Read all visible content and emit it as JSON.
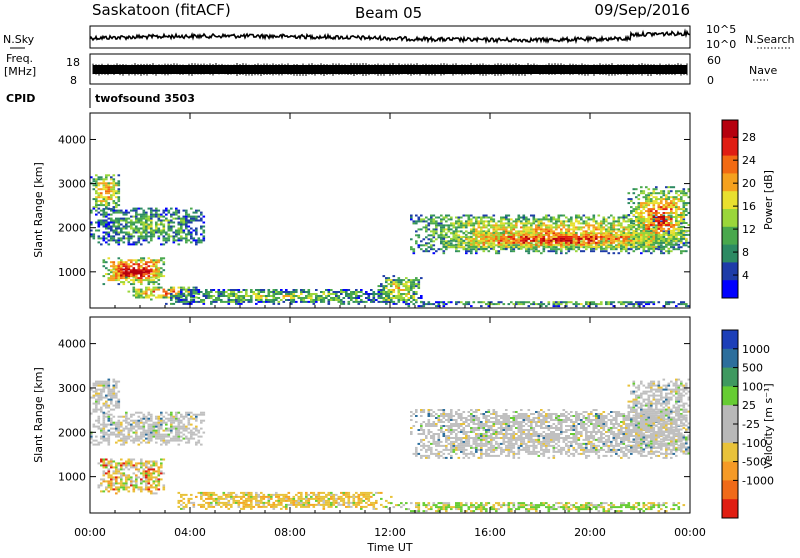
{
  "header": {
    "station": "Saskatoon (fitACF)",
    "beam": "Beam 05",
    "date": "09/Sep/2016"
  },
  "top_panels": {
    "nsky_label": "N.Sky",
    "nsearch_label": "N.Search",
    "nsky_ticks": [
      "10^5",
      "10^0"
    ],
    "freq_label_1": "Freq.",
    "freq_label_2": "[MHz]",
    "freq_ticks": [
      "18",
      "8"
    ],
    "nave_label": "Nave",
    "nave_ticks": [
      "60",
      "0"
    ],
    "cpid_label": "CPID",
    "cpid_value": "twofsound 3503"
  },
  "chart_data": [
    {
      "type": "heatmap",
      "panel": "power",
      "ylabel": "Slant Range [km]",
      "xlabel": "",
      "x_tick_labels": [
        "00:00",
        "04:00",
        "08:00",
        "12:00",
        "16:00",
        "20:00",
        "00:00"
      ],
      "x_hours": [
        0,
        4,
        8,
        12,
        16,
        20,
        24
      ],
      "y_ticks": [
        1000,
        2000,
        3000,
        4000
      ],
      "ylim": [
        180,
        4600
      ],
      "colorbar": {
        "label": "Power [dB]",
        "ticks": [
          4,
          8,
          12,
          16,
          20,
          24,
          28
        ],
        "range": [
          0,
          31
        ],
        "colors": [
          "#0000ff",
          "#1e3ca8",
          "#2c8a63",
          "#49a84d",
          "#9ad63a",
          "#e9e02f",
          "#f5a11e",
          "#f26a12",
          "#e01d12",
          "#b5000e"
        ]
      },
      "regions": [
        {
          "t": [
            0.0,
            1.2
          ],
          "r": [
            2400,
            3200
          ],
          "level": 0.55
        },
        {
          "t": [
            0.0,
            4.6
          ],
          "r": [
            1600,
            2450
          ],
          "level": 0.3
        },
        {
          "t": [
            0.5,
            3.0
          ],
          "r": [
            700,
            1300
          ],
          "level": 0.75
        },
        {
          "t": [
            0.8,
            2.8
          ],
          "r": [
            850,
            1100
          ],
          "level": 0.95
        },
        {
          "t": [
            1.5,
            4.3
          ],
          "r": [
            350,
            650
          ],
          "level": 0.6
        },
        {
          "t": [
            3.0,
            12.0
          ],
          "r": [
            250,
            600
          ],
          "level": 0.35
        },
        {
          "t": [
            11.5,
            13.2
          ],
          "r": [
            250,
            900
          ],
          "level": 0.45
        },
        {
          "t": [
            12.8,
            23.9
          ],
          "r": [
            1400,
            2300
          ],
          "level": 0.5
        },
        {
          "t": [
            14.0,
            23.5
          ],
          "r": [
            1500,
            1900
          ],
          "level": 0.7
        },
        {
          "t": [
            21.5,
            24.0
          ],
          "r": [
            1500,
            2900
          ],
          "level": 0.6
        },
        {
          "t": [
            12.5,
            24.0
          ],
          "r": [
            200,
            330
          ],
          "level": 0.3
        }
      ]
    },
    {
      "type": "heatmap",
      "panel": "velocity",
      "ylabel": "Slant Range [km]",
      "xlabel": "Time UT",
      "x_tick_labels": [
        "00:00",
        "04:00",
        "08:00",
        "12:00",
        "16:00",
        "20:00",
        "00:00"
      ],
      "x_hours": [
        0,
        4,
        8,
        12,
        16,
        20,
        24
      ],
      "y_ticks": [
        1000,
        2000,
        3000,
        4000
      ],
      "ylim": [
        180,
        4600
      ],
      "colorbar": {
        "label": "Velocity [m s⁻¹]",
        "ticks": [
          "1000",
          "500",
          "100",
          "25",
          "-25",
          "-100",
          "-500",
          "-1000"
        ],
        "colors": [
          "#1c3fb8",
          "#2c6e9c",
          "#3f9960",
          "#66cc33",
          "#b8b8b8",
          "#b8b8b8",
          "#e8c23a",
          "#f59a26",
          "#f06a18",
          "#e01e12"
        ]
      },
      "regions": [
        {
          "t": [
            0.0,
            1.2
          ],
          "r": [
            2400,
            3200
          ],
          "kind": "gray"
        },
        {
          "t": [
            0.0,
            4.6
          ],
          "r": [
            1700,
            2450
          ],
          "kind": "gray"
        },
        {
          "t": [
            0.3,
            3.0
          ],
          "r": [
            600,
            1400
          ],
          "kind": "mix"
        },
        {
          "t": [
            3.5,
            12.0
          ],
          "r": [
            250,
            650
          ],
          "kind": "orange"
        },
        {
          "t": [
            12.8,
            23.9
          ],
          "r": [
            1400,
            2500
          ],
          "kind": "gray"
        },
        {
          "t": [
            21.5,
            24.0
          ],
          "r": [
            1500,
            3200
          ],
          "kind": "gray"
        },
        {
          "t": [
            12.0,
            24.0
          ],
          "r": [
            200,
            400
          ],
          "kind": "green"
        }
      ]
    }
  ]
}
